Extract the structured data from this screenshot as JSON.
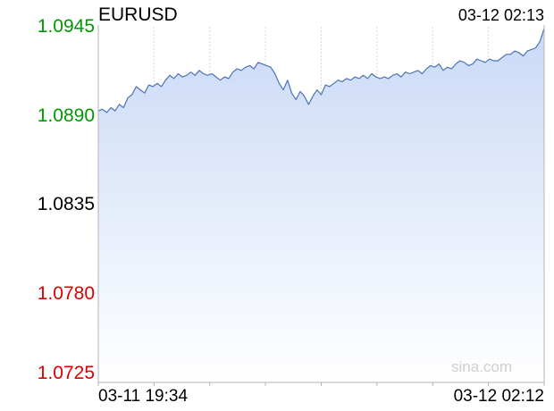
{
  "header": {
    "symbol": "EURUSD",
    "timestamp": "03-12 02:13"
  },
  "watermark": "sina.com",
  "colors": {
    "line": "#4a74b8",
    "fill_top": "#cad9f6",
    "fill_bottom": "#ffffff",
    "up": "#009900",
    "down": "#dd0000",
    "neutral": "#000000",
    "grid": "#d9d9d9",
    "axis": "#b4b4b4"
  },
  "chart_data": {
    "type": "area",
    "title": "EURUSD",
    "reference_value": 1.0835,
    "ylim": [
      1.0725,
      1.0945
    ],
    "y_ticks": [
      {
        "label": "1.0945",
        "value": 1.0945,
        "color": "#009900"
      },
      {
        "label": "1.0890",
        "value": 1.089,
        "color": "#009900"
      },
      {
        "label": "1.0835",
        "value": 1.0835,
        "color": "#000000"
      },
      {
        "label": "1.0780",
        "value": 1.078,
        "color": "#dd0000"
      },
      {
        "label": "1.0725",
        "value": 1.0725,
        "color": "#dd0000"
      }
    ],
    "x_labels": [
      "03-11 19:34",
      "03-12 02:12"
    ],
    "grid": true,
    "series": [
      {
        "values": [
          1.0893,
          1.0894,
          1.0892,
          1.0895,
          1.0893,
          1.0897,
          1.0895,
          1.0901,
          1.0903,
          1.0908,
          1.0906,
          1.0904,
          1.0909,
          1.0908,
          1.091,
          1.0908,
          1.0912,
          1.0915,
          1.0913,
          1.0916,
          1.0914,
          1.0915,
          1.0917,
          1.0915,
          1.0918,
          1.0916,
          1.0915,
          1.0916,
          1.0914,
          1.0912,
          1.0914,
          1.0913,
          1.0917,
          1.0919,
          1.0918,
          1.092,
          1.0921,
          1.0919,
          1.0923,
          1.0922,
          1.0921,
          1.092,
          1.0916,
          1.091,
          1.0906,
          1.0912,
          1.0904,
          1.09,
          1.0905,
          1.0902,
          1.0897,
          1.0902,
          1.0906,
          1.0903,
          1.0909,
          1.0908,
          1.091,
          1.0912,
          1.0911,
          1.0913,
          1.0912,
          1.0914,
          1.0913,
          1.0915,
          1.0913,
          1.0916,
          1.0914,
          1.0913,
          1.0914,
          1.0913,
          1.0915,
          1.0916,
          1.0914,
          1.0917,
          1.0916,
          1.0917,
          1.0918,
          1.0916,
          1.0919,
          1.0921,
          1.092,
          1.0922,
          1.0918,
          1.092,
          1.0919,
          1.0922,
          1.0924,
          1.0923,
          1.0921,
          1.0922,
          1.0925,
          1.0924,
          1.0923,
          1.0925,
          1.0924,
          1.0924,
          1.0926,
          1.0928,
          1.0928,
          1.093,
          1.0929,
          1.0927,
          1.093,
          1.0931,
          1.0932,
          1.0936,
          1.0944
        ]
      }
    ]
  }
}
